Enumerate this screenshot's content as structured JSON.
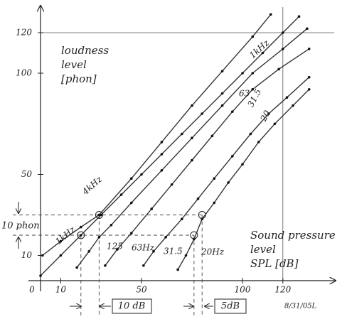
{
  "chart_data": {
    "type": "line",
    "y_label": [
      "loudness",
      "level",
      "[phon]"
    ],
    "x_label": [
      "Sound pressure",
      "level",
      "SPL [dB]"
    ],
    "xlim": [
      0,
      140
    ],
    "ylim": [
      0,
      135
    ],
    "xticks": [
      0,
      10,
      50,
      100,
      120
    ],
    "yticks": [
      10,
      50,
      100,
      120
    ],
    "color": "#333333",
    "series": [
      {
        "name": "4kHz",
        "x": [
          1,
          10,
          20,
          29,
          45,
          60,
          75,
          90,
          105,
          114
        ],
        "values": [
          10,
          17,
          24,
          30,
          48,
          66,
          84,
          101,
          118,
          129
        ]
      },
      {
        "name": "1kHz",
        "x": [
          0,
          10,
          20,
          30,
          40,
          50,
          60,
          70,
          80,
          90,
          100,
          110,
          120,
          128
        ],
        "values": [
          0,
          10,
          20,
          30,
          40,
          50,
          60,
          70,
          80,
          90,
          100,
          110,
          120,
          128
        ]
      },
      {
        "name": "125",
        "x": [
          18,
          24,
          29,
          35,
          45,
          60,
          75,
          90,
          105,
          120,
          132
        ],
        "values": [
          4,
          12,
          19,
          25,
          36,
          52,
          68,
          84,
          100,
          112,
          122
        ]
      },
      {
        "name": "63Hz",
        "x": [
          32,
          38,
          45,
          55,
          65,
          75,
          85,
          95,
          105,
          118,
          133
        ],
        "values": [
          5,
          13,
          21,
          33,
          45,
          57,
          69,
          81,
          92,
          102,
          112
        ]
      },
      {
        "name": "31.5",
        "x": [
          51,
          56,
          62,
          70,
          78,
          86,
          95,
          104,
          113,
          122,
          133
        ],
        "values": [
          5,
          12,
          19,
          28,
          38,
          48,
          59,
          70,
          80,
          88,
          98
        ]
      },
      {
        "name": "20Hz",
        "x": [
          68,
          72,
          76,
          80,
          86,
          93,
          100,
          108,
          116,
          125,
          133
        ],
        "values": [
          3,
          10,
          18,
          28,
          36,
          46,
          55,
          66,
          75,
          84,
          92
        ]
      }
    ],
    "curve_labels": [
      "1kHz",
      "63",
      "31.5",
      "20"
    ],
    "highlight_points": {
      "x": [
        20,
        29,
        76,
        80
      ],
      "values": [
        20,
        30,
        20,
        30
      ]
    },
    "annotations": [
      "10 phon",
      "10 dB",
      "5dB",
      "8/31/05L"
    ]
  }
}
